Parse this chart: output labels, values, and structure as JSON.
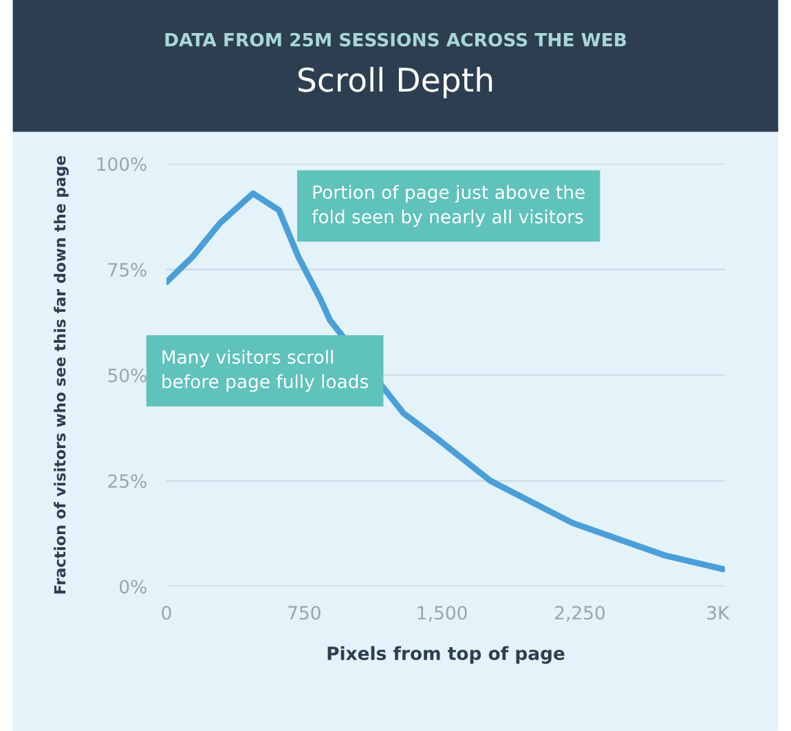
{
  "chart_data": {
    "type": "line",
    "subtitle": "DATA FROM 25M SESSIONS ACROSS THE WEB",
    "title": "Scroll Depth",
    "xlabel": "Pixels from top of page",
    "ylabel": "Fraction of visitors who see this far down the page",
    "x": [
      0,
      142,
      292,
      471,
      613,
      718,
      838,
      890,
      1290,
      1488,
      1763,
      2211,
      2708,
      3030
    ],
    "series": [
      {
        "color": "#4a9fd8",
        "values": [
          72,
          78,
          86,
          93,
          89,
          78,
          68,
          63,
          41,
          34.5,
          25,
          15,
          7.4,
          4.1
        ]
      }
    ],
    "xlim": [
      0,
      3040
    ],
    "ylim": [
      0,
      100
    ],
    "xticks": [
      0,
      750,
      {
        "value": 1500,
        "label": "1,500"
      },
      {
        "value": 2250,
        "label": "2,250"
      },
      {
        "value": 3000,
        "label": "3K"
      }
    ],
    "yticks": [
      {
        "value": 0,
        "label": "0%"
      },
      {
        "value": 25,
        "label": "25%"
      },
      {
        "value": 50,
        "label": "50%"
      },
      {
        "value": 75,
        "label": "75%"
      },
      {
        "value": 100,
        "label": "100%"
      }
    ],
    "grid": "y",
    "marker": "none",
    "line_style": "solid",
    "annotations": [
      "Portion of page just above the\nfold seen by nearly all visitors",
      "Many visitors scroll\nbefore page fully loads"
    ]
  }
}
